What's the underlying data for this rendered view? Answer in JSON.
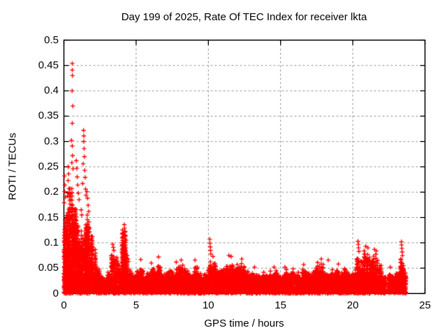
{
  "title": "Day 199 of 2025, Rate Of TEC Index for receiver lkta",
  "colors": {
    "marker": "#ff0000",
    "grid": "#9b9b9b",
    "border": "#000000",
    "background": "#ffffff",
    "text": "#000000"
  },
  "x_axis": {
    "label": "GPS time / hours",
    "ticks": [
      0,
      5,
      10,
      15,
      20,
      25
    ],
    "tick_labels": [
      "0",
      "5",
      "10",
      "15",
      "20",
      "25"
    ],
    "range": [
      0,
      25
    ],
    "gridlines_at": [
      5,
      10,
      15,
      20
    ]
  },
  "y_axis": {
    "label": "ROTI / TECUs",
    "ticks": [
      0,
      0.05,
      0.1,
      0.15,
      0.2,
      0.25,
      0.3,
      0.35,
      0.4,
      0.45,
      0.5
    ],
    "tick_labels": [
      "0",
      "0.05",
      "0.1",
      "0.15",
      "0.2",
      "0.25",
      "0.3",
      "0.35",
      "0.4",
      "0.45",
      "0.5"
    ],
    "range": [
      0,
      0.5
    ],
    "gridlines_at": [
      0.05,
      0.1,
      0.15,
      0.2,
      0.25,
      0.3,
      0.35,
      0.4,
      0.45
    ]
  },
  "chart_data": {
    "type": "scatter",
    "marker": "plus",
    "title": "Day 199 of 2025, Rate Of TEC Index for receiver lkta",
    "receiver": "lkta",
    "day_of_year": 199,
    "year": 2025,
    "xlabel": "GPS time / hours",
    "ylabel": "ROTI / TECUs",
    "xlim": [
      0,
      25
    ],
    "ylim": [
      0,
      0.5
    ],
    "grid": "dashed",
    "legend": "none",
    "data_end_hour": 23.7,
    "gaps": [
      [
        22.28,
        22.45
      ]
    ],
    "envelope_description": "Dense cloud of ROTI samples; each bin is [start_hour, max_of_dense_mass_TECU], bin width 0.25 h. Solid red mass below ~0.03 all day.",
    "envelope_bins": [
      [
        0,
        0.17
      ],
      [
        0.25,
        0.25
      ],
      [
        0.5,
        0.22
      ],
      [
        0.75,
        0.17
      ],
      [
        1,
        0.13
      ],
      [
        1.25,
        0.13
      ],
      [
        1.5,
        0.18
      ],
      [
        1.75,
        0.14
      ],
      [
        2,
        0.09
      ],
      [
        2.25,
        0.06
      ],
      [
        2.5,
        0.04
      ],
      [
        2.75,
        0.035
      ],
      [
        3,
        0.05
      ],
      [
        3.25,
        0.095
      ],
      [
        3.5,
        0.085
      ],
      [
        3.75,
        0.06
      ],
      [
        4,
        0.13
      ],
      [
        4.25,
        0.11
      ],
      [
        4.5,
        0.05
      ],
      [
        4.75,
        0.04
      ],
      [
        5,
        0.05
      ],
      [
        5.25,
        0.065
      ],
      [
        5.5,
        0.04
      ],
      [
        5.75,
        0.05
      ],
      [
        6,
        0.06
      ],
      [
        6.25,
        0.05
      ],
      [
        6.5,
        0.07
      ],
      [
        6.75,
        0.045
      ],
      [
        7,
        0.05
      ],
      [
        7.25,
        0.055
      ],
      [
        7.5,
        0.045
      ],
      [
        7.75,
        0.06
      ],
      [
        8,
        0.065
      ],
      [
        8.25,
        0.055
      ],
      [
        8.5,
        0.05
      ],
      [
        8.75,
        0.04
      ],
      [
        9,
        0.065
      ],
      [
        9.25,
        0.045
      ],
      [
        9.5,
        0.04
      ],
      [
        9.75,
        0.045
      ],
      [
        10,
        0.07
      ],
      [
        10.25,
        0.075
      ],
      [
        10.5,
        0.06
      ],
      [
        10.75,
        0.055
      ],
      [
        11,
        0.06
      ],
      [
        11.25,
        0.07
      ],
      [
        11.5,
        0.072
      ],
      [
        11.75,
        0.06
      ],
      [
        12,
        0.065
      ],
      [
        12.25,
        0.07
      ],
      [
        12.5,
        0.055
      ],
      [
        12.75,
        0.045
      ],
      [
        13,
        0.05
      ],
      [
        13.25,
        0.045
      ],
      [
        13.5,
        0.04
      ],
      [
        13.75,
        0.045
      ],
      [
        14,
        0.04
      ],
      [
        14.25,
        0.045
      ],
      [
        14.5,
        0.05
      ],
      [
        14.75,
        0.045
      ],
      [
        15,
        0.04
      ],
      [
        15.25,
        0.05
      ],
      [
        15.5,
        0.045
      ],
      [
        15.75,
        0.05
      ],
      [
        16,
        0.045
      ],
      [
        16.25,
        0.04
      ],
      [
        16.5,
        0.055
      ],
      [
        16.75,
        0.05
      ],
      [
        17,
        0.045
      ],
      [
        17.25,
        0.055
      ],
      [
        17.5,
        0.07
      ],
      [
        17.75,
        0.065
      ],
      [
        18,
        0.05
      ],
      [
        18.25,
        0.045
      ],
      [
        18.5,
        0.05
      ],
      [
        18.75,
        0.055
      ],
      [
        19,
        0.045
      ],
      [
        19.25,
        0.055
      ],
      [
        19.5,
        0.05
      ],
      [
        19.75,
        0.045
      ],
      [
        20,
        0.05
      ],
      [
        20.25,
        0.085
      ],
      [
        20.5,
        0.08
      ],
      [
        20.75,
        0.09
      ],
      [
        21,
        0.085
      ],
      [
        21.25,
        0.08
      ],
      [
        21.5,
        0.085
      ],
      [
        21.75,
        0.065
      ],
      [
        22,
        0.04
      ],
      [
        22.25,
        0.045
      ],
      [
        22.5,
        0.05
      ],
      [
        22.75,
        0.04
      ],
      [
        23,
        0.05
      ],
      [
        23.25,
        0.08
      ],
      [
        23.5,
        0.06
      ]
    ],
    "outlier_points_description": "Isolated high [hour, ROTI] markers visible above the dense mass.",
    "outlier_points": [
      [
        0.58,
        0.454
      ],
      [
        0.58,
        0.441
      ],
      [
        0.59,
        0.43
      ],
      [
        0.57,
        0.4
      ],
      [
        0.62,
        0.37
      ],
      [
        0.58,
        0.336
      ],
      [
        0.52,
        0.302
      ],
      [
        0.58,
        0.291
      ],
      [
        0.6,
        0.272
      ],
      [
        0.55,
        0.258
      ],
      [
        0.63,
        0.246
      ],
      [
        1.36,
        0.322
      ],
      [
        1.38,
        0.311
      ],
      [
        1.37,
        0.3
      ],
      [
        1.4,
        0.286
      ],
      [
        1.42,
        0.27
      ],
      [
        1.33,
        0.256
      ],
      [
        1.44,
        0.243
      ],
      [
        1.47,
        0.229
      ],
      [
        1.3,
        0.217
      ],
      [
        1.5,
        0.206
      ],
      [
        1.53,
        0.194
      ],
      [
        0.3,
        0.25
      ],
      [
        0.33,
        0.236
      ],
      [
        0.29,
        0.223
      ],
      [
        0.36,
        0.207
      ],
      [
        0.4,
        0.196
      ],
      [
        0.44,
        0.186
      ],
      [
        0.04,
        0.232
      ],
      [
        0.07,
        0.214
      ],
      [
        0.05,
        0.201
      ],
      [
        0.1,
        0.19
      ],
      [
        0.02,
        0.179
      ],
      [
        0.86,
        0.262
      ],
      [
        0.89,
        0.247
      ],
      [
        0.92,
        0.23
      ],
      [
        0.96,
        0.214
      ],
      [
        1.0,
        0.198
      ],
      [
        1.05,
        0.185
      ],
      [
        1.6,
        0.201
      ],
      [
        1.64,
        0.188
      ],
      [
        1.68,
        0.174
      ],
      [
        1.72,
        0.162
      ],
      [
        1.2,
        0.165
      ],
      [
        1.24,
        0.155
      ],
      [
        4.18,
        0.136
      ],
      [
        4.2,
        0.129
      ],
      [
        4.23,
        0.121
      ],
      [
        4.26,
        0.113
      ],
      [
        4.3,
        0.105
      ],
      [
        3.38,
        0.097
      ],
      [
        3.42,
        0.091
      ],
      [
        3.46,
        0.085
      ],
      [
        10.1,
        0.107
      ],
      [
        10.11,
        0.099
      ],
      [
        10.13,
        0.092
      ],
      [
        10.15,
        0.085
      ],
      [
        10.17,
        0.078
      ],
      [
        20.36,
        0.103
      ],
      [
        20.38,
        0.097
      ],
      [
        20.4,
        0.09
      ],
      [
        20.43,
        0.083
      ],
      [
        23.37,
        0.102
      ],
      [
        23.38,
        0.096
      ],
      [
        23.4,
        0.089
      ],
      [
        23.42,
        0.082
      ],
      [
        23.44,
        0.075
      ],
      [
        20.9,
        0.093
      ],
      [
        21.05,
        0.09
      ],
      [
        21.5,
        0.087
      ],
      [
        21.62,
        0.084
      ],
      [
        11.42,
        0.075
      ],
      [
        11.58,
        0.073
      ],
      [
        12.32,
        0.068
      ],
      [
        10.32,
        0.073
      ],
      [
        6.55,
        0.072
      ],
      [
        5.32,
        0.067
      ],
      [
        8.12,
        0.066
      ],
      [
        9.08,
        0.066
      ],
      [
        17.82,
        0.068
      ],
      [
        18.3,
        0.066
      ],
      [
        19.0,
        0.058
      ],
      [
        16.6,
        0.057
      ],
      [
        14.55,
        0.052
      ],
      [
        15.3,
        0.052
      ],
      [
        13.2,
        0.052
      ],
      [
        7.78,
        0.062
      ],
      [
        6.05,
        0.06
      ],
      [
        22.6,
        0.052
      ],
      [
        2.1,
        0.075
      ],
      [
        2.2,
        0.062
      ]
    ]
  }
}
